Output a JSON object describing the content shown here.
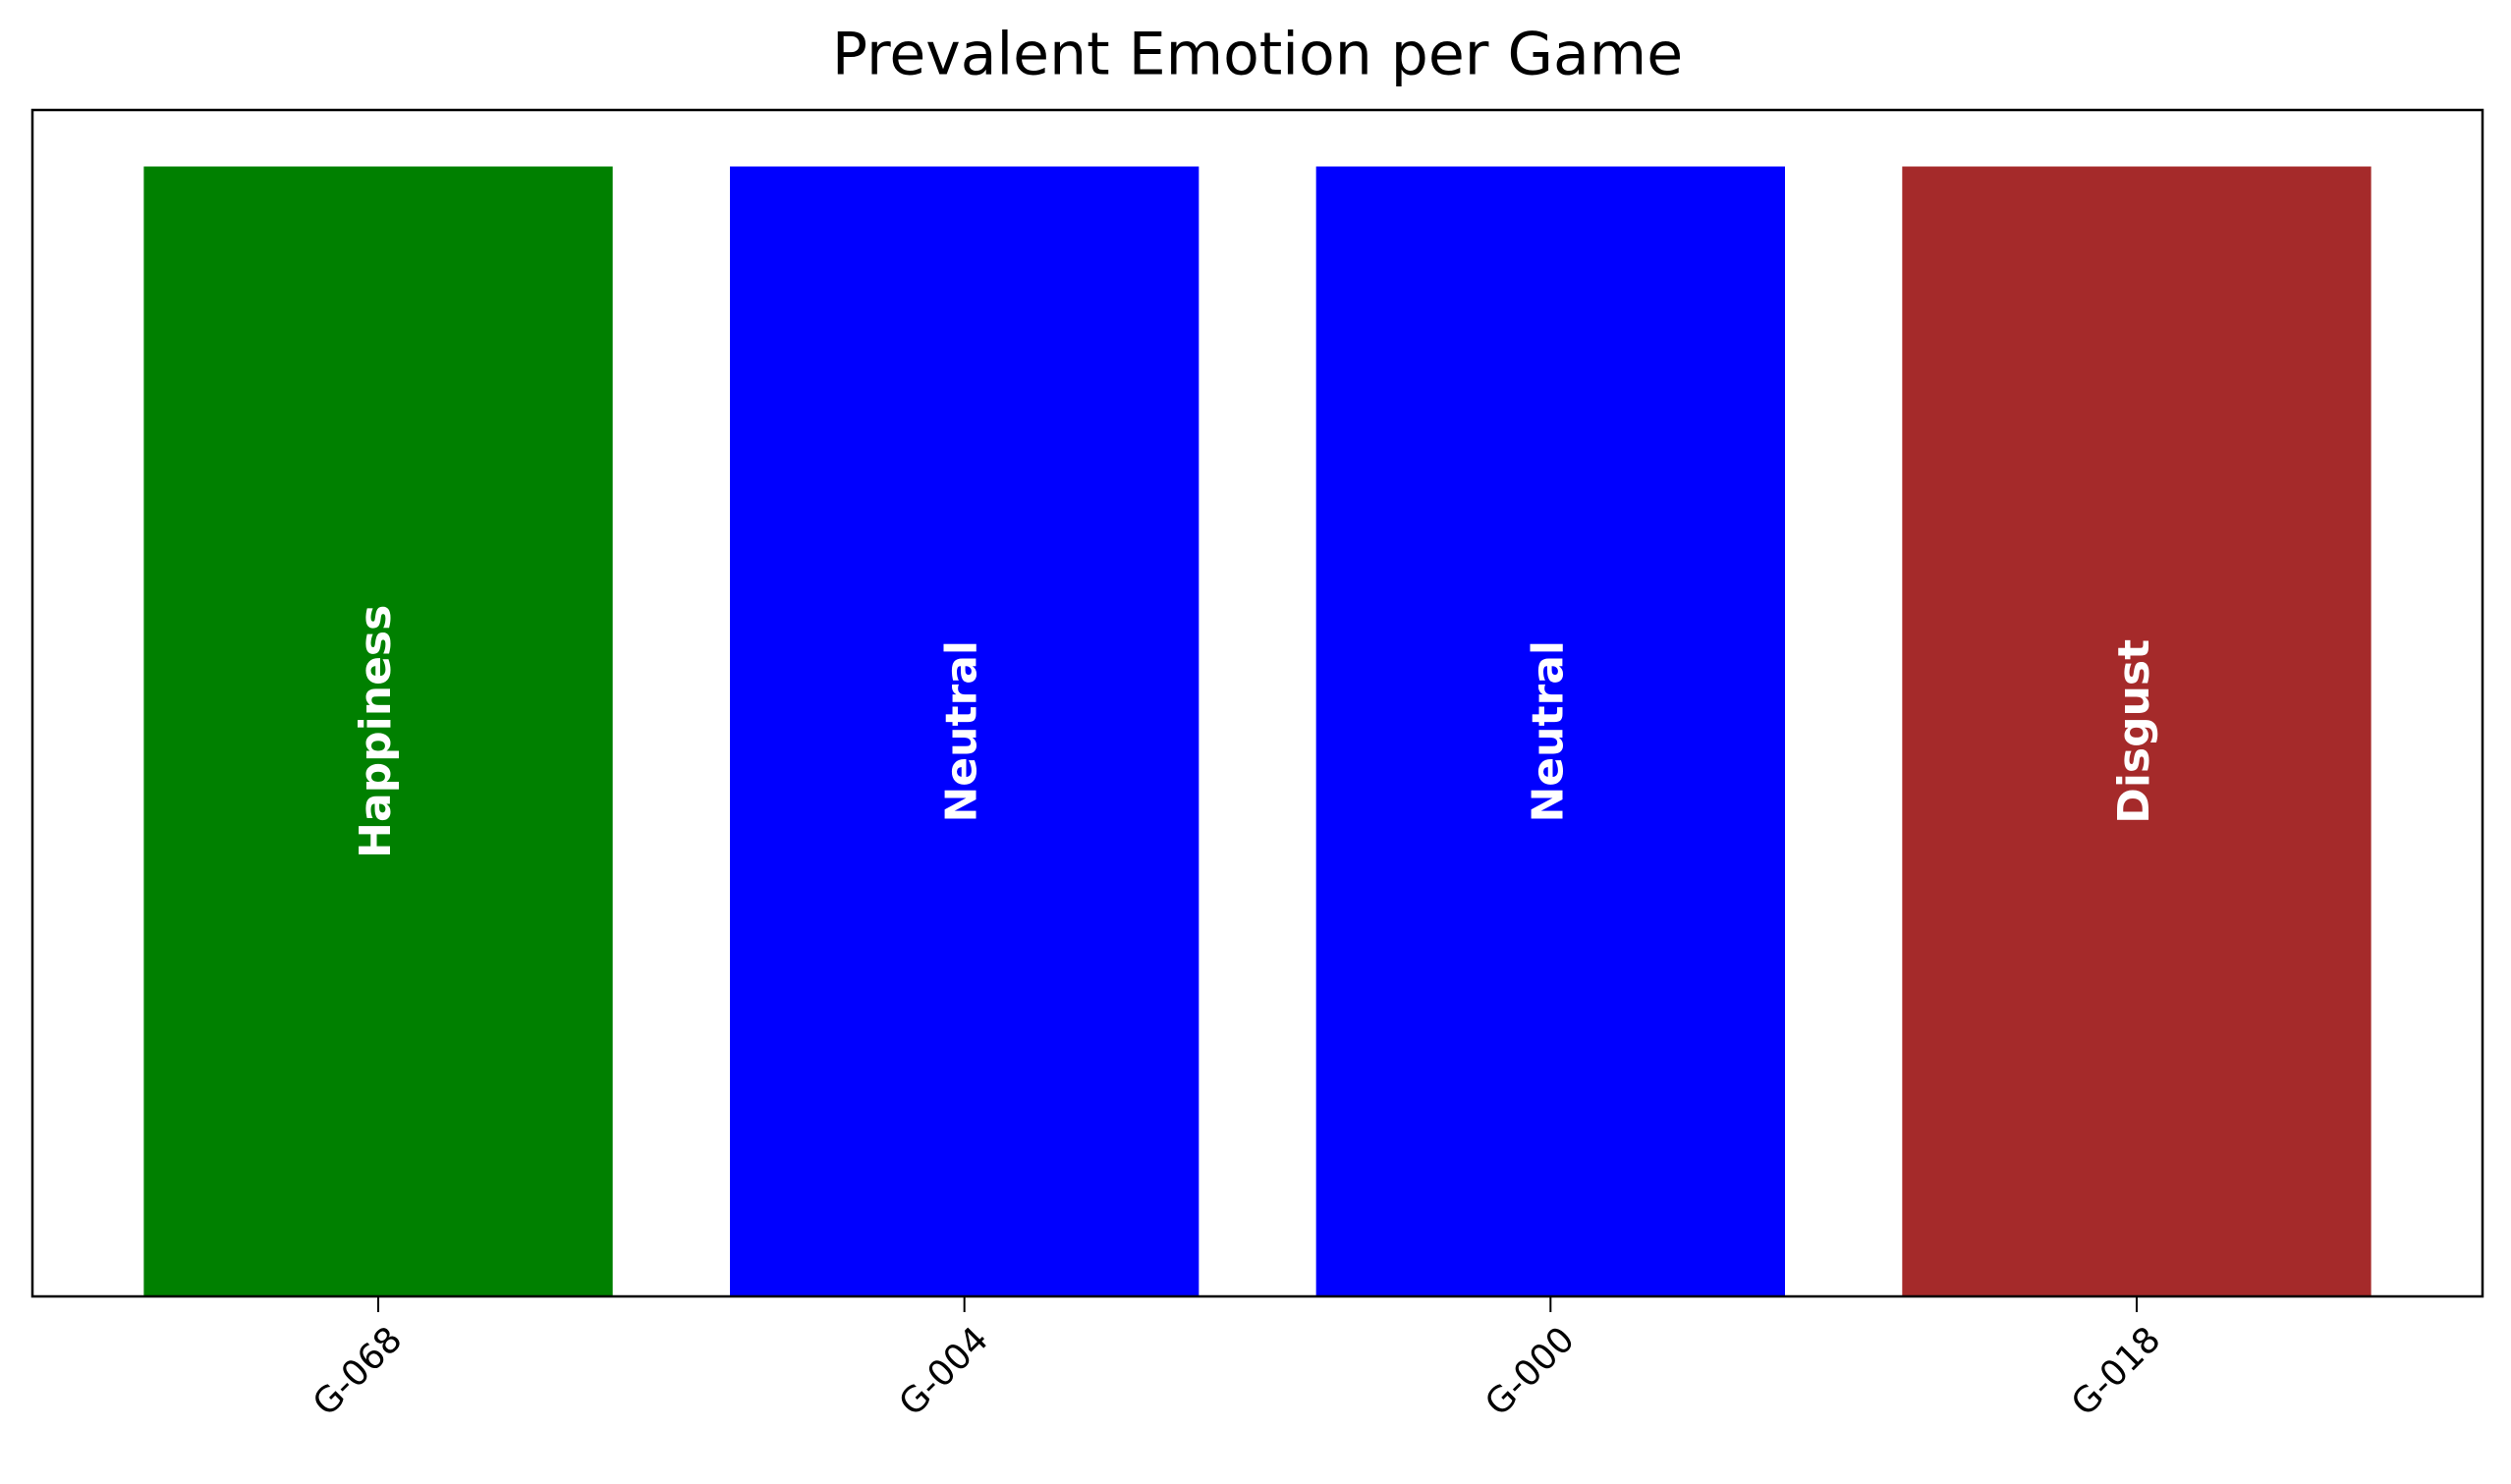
{
  "chart_data": {
    "type": "bar",
    "title": "Prevalent Emotion per Game",
    "categories": [
      "G-068",
      "G-004",
      "G-000",
      "G-018"
    ],
    "values": [
      1,
      1,
      1,
      1
    ],
    "labels": [
      "Happiness",
      "Neutral",
      "Neutral",
      "Disgust"
    ],
    "colors": [
      "#008000",
      "#0000ff",
      "#0000ff",
      "#a52a2a"
    ],
    "ylim": [
      0,
      1.05
    ]
  }
}
